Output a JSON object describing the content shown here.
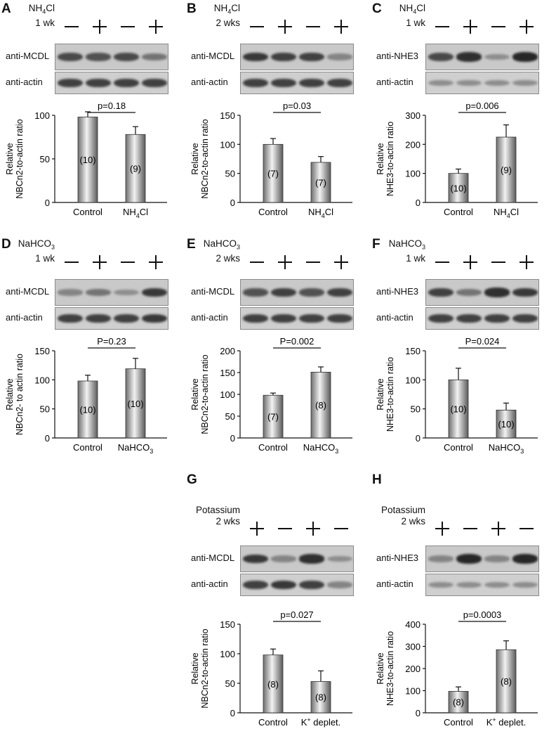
{
  "panels": [
    {
      "letter": "A",
      "treatment": {
        "line1": "NH",
        "sub": "4",
        "tail": "Cl",
        "line2": "1 wk"
      },
      "signs": [
        "−",
        "+",
        "−",
        "+"
      ],
      "blot_labels": [
        "anti-MCDL",
        "anti-actin"
      ],
      "bands_top": [
        0.75,
        0.7,
        0.75,
        0.5
      ],
      "bands_bottom": [
        0.8,
        0.8,
        0.8,
        0.8
      ],
      "chart_data": {
        "type": "bar",
        "ylabel_line1": "Relative",
        "ylabel_line2": "NBCn2-to-actin ratio",
        "ylim": [
          0,
          100
        ],
        "yticks": [
          0,
          50,
          100
        ],
        "categories": [
          "Control",
          "NH4Cl"
        ],
        "category_labels": [
          {
            "main": "Control"
          },
          {
            "main": "NH",
            "sub": "4",
            "tail": "Cl"
          }
        ],
        "values": [
          98,
          78
        ],
        "errors": [
          6,
          9
        ],
        "n_labels": [
          "(10)",
          "(9)"
        ],
        "p_label": "p=0.18"
      }
    },
    {
      "letter": "B",
      "treatment": {
        "line1": "NH",
        "sub": "4",
        "tail": "Cl",
        "line2": "2 wks"
      },
      "signs": [
        "−",
        "+",
        "−",
        "+"
      ],
      "blot_labels": [
        "anti-MCDL",
        "anti-actin"
      ],
      "bands_top": [
        0.85,
        0.8,
        0.8,
        0.4
      ],
      "bands_bottom": [
        0.8,
        0.8,
        0.8,
        0.8
      ],
      "chart_data": {
        "type": "bar",
        "ylabel_line1": "Relative",
        "ylabel_line2": "NBCn2-to-actin ratio",
        "ylim": [
          0,
          150
        ],
        "yticks": [
          0,
          50,
          100,
          150
        ],
        "categories": [
          "Control",
          "NH4Cl"
        ],
        "category_labels": [
          {
            "main": "Control"
          },
          {
            "main": "NH",
            "sub": "4",
            "tail": "Cl"
          }
        ],
        "values": [
          100,
          69
        ],
        "errors": [
          10,
          10
        ],
        "n_labels": [
          "(7)",
          "(7)"
        ],
        "p_label": "p=0.03"
      }
    },
    {
      "letter": "C",
      "treatment": {
        "line1": "NH",
        "sub": "4",
        "tail": "Cl",
        "line2": "1 wk"
      },
      "signs": [
        "−",
        "+",
        "−",
        "+"
      ],
      "blot_labels": [
        "anti-NHE3",
        "anti-actin"
      ],
      "bands_top": [
        0.75,
        0.9,
        0.35,
        0.95
      ],
      "bands_bottom": [
        0.35,
        0.35,
        0.35,
        0.35
      ],
      "chart_data": {
        "type": "bar",
        "ylabel_line1": "Relative",
        "ylabel_line2": "NHE3-to-actin ratio",
        "ylim": [
          0,
          300
        ],
        "yticks": [
          0,
          100,
          200,
          300
        ],
        "categories": [
          "Control",
          "NH4Cl"
        ],
        "category_labels": [
          {
            "main": "Control"
          },
          {
            "main": "NH",
            "sub": "4",
            "tail": "Cl"
          }
        ],
        "values": [
          100,
          225
        ],
        "errors": [
          15,
          42
        ],
        "n_labels": [
          "(10)",
          "(9)"
        ],
        "p_label": "p=0.006"
      }
    },
    {
      "letter": "D",
      "treatment": {
        "line1": "NaHCO",
        "sub": "3",
        "tail": "",
        "line2": "1 wk"
      },
      "signs": [
        "−",
        "+",
        "−",
        "+"
      ],
      "blot_labels": [
        "anti-MCDL",
        "anti-actin"
      ],
      "bands_top": [
        0.4,
        0.5,
        0.35,
        0.85
      ],
      "bands_bottom": [
        0.8,
        0.8,
        0.8,
        0.85
      ],
      "chart_data": {
        "type": "bar",
        "ylabel_line1": "Relative",
        "ylabel_line2": "NBCn2- to actin ratio",
        "ylim": [
          0,
          150
        ],
        "yticks": [
          0,
          50,
          100,
          150
        ],
        "categories": [
          "Control",
          "NaHCO3"
        ],
        "category_labels": [
          {
            "main": "Control"
          },
          {
            "main": "NaHCO",
            "sub": "3",
            "tail": ""
          }
        ],
        "values": [
          98,
          119
        ],
        "errors": [
          10,
          18
        ],
        "n_labels": [
          "(10)",
          "(10)"
        ],
        "p_label": "P=0.23"
      }
    },
    {
      "letter": "E",
      "treatment": {
        "line1": "NaHCO",
        "sub": "3",
        "tail": "",
        "line2": "2 wks"
      },
      "signs": [
        "−",
        "+",
        "−",
        "+"
      ],
      "blot_labels": [
        "anti-MCDL",
        "anti-actin"
      ],
      "bands_top": [
        0.7,
        0.8,
        0.7,
        0.8
      ],
      "bands_bottom": [
        0.8,
        0.8,
        0.8,
        0.8
      ],
      "chart_data": {
        "type": "bar",
        "ylabel_line1": "Relative",
        "ylabel_line2": "NBCn2-to-actin ratio",
        "ylim": [
          0,
          200
        ],
        "yticks": [
          0,
          50,
          100,
          150,
          200
        ],
        "categories": [
          "Control",
          "NaHCO3"
        ],
        "category_labels": [
          {
            "main": "Control"
          },
          {
            "main": "NaHCO",
            "sub": "3",
            "tail": ""
          }
        ],
        "values": [
          98,
          151
        ],
        "errors": [
          5,
          12
        ],
        "n_labels": [
          "(7)",
          "(8)"
        ],
        "p_label": "P=0.002"
      }
    },
    {
      "letter": "F",
      "treatment": {
        "line1": "NaHCO",
        "sub": "3",
        "tail": "",
        "line2": "1 wk"
      },
      "signs": [
        "−",
        "+",
        "−",
        "+"
      ],
      "blot_labels": [
        "anti-NHE3",
        "anti-actin"
      ],
      "bands_top": [
        0.8,
        0.5,
        0.9,
        0.85
      ],
      "bands_bottom": [
        0.8,
        0.8,
        0.8,
        0.8
      ],
      "chart_data": {
        "type": "bar",
        "ylabel_line1": "Relative",
        "ylabel_line2": "NHE3-to-actin ratio",
        "ylim": [
          0,
          150
        ],
        "yticks": [
          0,
          50,
          100,
          150
        ],
        "categories": [
          "Control",
          "NaHCO3"
        ],
        "category_labels": [
          {
            "main": "Control"
          },
          {
            "main": "NaHCO",
            "sub": "3",
            "tail": ""
          }
        ],
        "values": [
          100,
          48
        ],
        "errors": [
          20,
          12
        ],
        "n_labels": [
          "(10)",
          "(10)"
        ],
        "p_label": "P=0.024"
      }
    },
    {
      "letter": "G",
      "treatment": {
        "line1": "Potassium",
        "sub": "",
        "tail": "",
        "line2": "2 wks"
      },
      "signs": [
        "+",
        "−",
        "+",
        "−"
      ],
      "blot_labels": [
        "anti-MCDL",
        "anti-actin"
      ],
      "bands_top": [
        0.85,
        0.4,
        0.9,
        0.35
      ],
      "bands_bottom": [
        0.8,
        0.85,
        0.8,
        0.4
      ],
      "chart_data": {
        "type": "bar",
        "ylabel_line1": "Relative",
        "ylabel_line2": "NBCn2-to-actin ratio",
        "ylim": [
          0,
          150
        ],
        "yticks": [
          0,
          50,
          100,
          150
        ],
        "categories": [
          "Control",
          "K+ deplet."
        ],
        "category_labels": [
          {
            "main": "Control"
          },
          {
            "main": "K",
            "sup": "+",
            "tail": " deplet."
          }
        ],
        "values": [
          98,
          53
        ],
        "errors": [
          10,
          18
        ],
        "n_labels": [
          "(8)",
          "(8)"
        ],
        "p_label": "p=0.027"
      }
    },
    {
      "letter": "H",
      "treatment": {
        "line1": "Potassium",
        "sub": "",
        "tail": "",
        "line2": "2 wks"
      },
      "signs": [
        "+",
        "−",
        "+",
        "−"
      ],
      "blot_labels": [
        "anti-NHE3",
        "anti-actin"
      ],
      "bands_top": [
        0.4,
        0.95,
        0.4,
        0.95
      ],
      "bands_bottom": [
        0.35,
        0.35,
        0.35,
        0.35
      ],
      "chart_data": {
        "type": "bar",
        "ylabel_line1": "Relative",
        "ylabel_line2": "NHE3-to-actin ratio",
        "ylim": [
          0,
          400
        ],
        "yticks": [
          0,
          100,
          200,
          300,
          400
        ],
        "categories": [
          "Control",
          "K+ deplet."
        ],
        "category_labels": [
          {
            "main": "Control"
          },
          {
            "main": "K",
            "sup": "+",
            "tail": " deplet."
          }
        ],
        "values": [
          97,
          285
        ],
        "errors": [
          20,
          40
        ],
        "n_labels": [
          "(8)",
          "(8)"
        ],
        "p_label": "p=0.0003"
      }
    }
  ]
}
